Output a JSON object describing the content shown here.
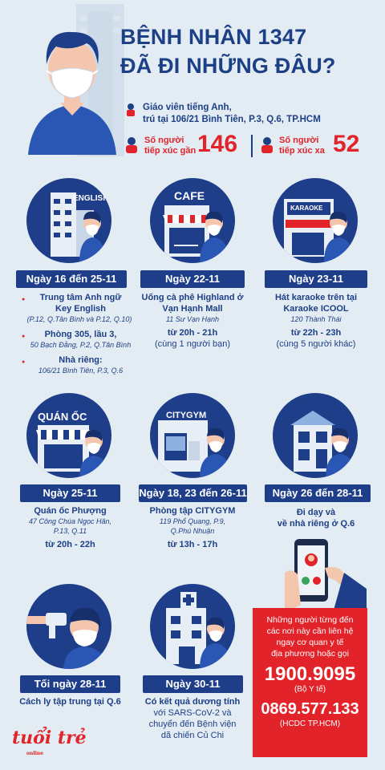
{
  "header": {
    "title_line1": "BỆNH NHÂN 1347",
    "title_line2": "ĐÃ ĐI NHỮNG ĐÂU?",
    "info_line1": "Giáo viên tiếng Anh,",
    "info_line2": "trú tại 106/21 Bình Tiên, P.3, Q.6, TP.HCM",
    "stat1_label_line1": "Số người",
    "stat1_label_line2": "tiếp xúc gần",
    "stat1_value": "146",
    "stat2_label_line1": "Số người",
    "stat2_label_line2": "tiếp xúc xa",
    "stat2_value": "52"
  },
  "places": {
    "english": {
      "sign": "ENGLISH",
      "date": "Ngày 16 đến 25-11",
      "item1_line1": "Trung tâm Anh ngữ",
      "item1_line2": "Key English",
      "item1_addr": "(P.12, Q.Tân Bình và P.12, Q.10)",
      "item2": "Phòng 305, lầu 3,",
      "item2_addr": "50 Bạch Đằng, P.2, Q.Tân Bình",
      "item3": "Nhà riêng:",
      "item3_addr": "106/21 Bình Tiên, P.3, Q.6"
    },
    "cafe": {
      "sign": "CAFE",
      "date": "Ngày 22-11",
      "line1": "Uống cà phê Highland ở",
      "line2": "Vạn Hạnh Mall",
      "addr": "11 Sư Vạn Hạnh",
      "time": "từ 20h - 21h",
      "note": "(cùng 1 người bạn)"
    },
    "karaoke": {
      "sign": "KARAOKE",
      "date": "Ngày 23-11",
      "line1": "Hát karaoke trên tại",
      "line2": "Karaoke ICOOL",
      "addr": "120 Thành Thái",
      "time": "từ 22h - 23h",
      "note": "(cùng 5 người khác)"
    },
    "quanoc": {
      "sign": "QUÁN ỐC",
      "date": "Ngày 25-11",
      "line1": "Quán ốc Phượng",
      "addr1": "47 Công Chúa Ngọc Hân,",
      "addr2": "P.13, Q.11",
      "time": "từ 20h - 22h"
    },
    "gym": {
      "sign": "CITYGYM",
      "date": "Ngày 18, 23 đến 26-11",
      "line1": "Phòng tập CITYGYM",
      "addr1": "119 Phổ Quang, P.9,",
      "addr2": "Q.Phú Nhuận",
      "time": "từ 13h - 17h"
    },
    "home": {
      "date": "Ngày 26 đến 28-11",
      "line1": "Đi dạy và",
      "line2": "về nhà riêng ở Q.6"
    },
    "isolation": {
      "date": "Tối ngày 28-11",
      "line1": "Cách ly tập trung tại Q.6"
    },
    "hospital": {
      "date": "Ngày 30-11",
      "line1": "Có kết quả dương tính",
      "line2": "với SARS-CoV-2 và",
      "line3": "chuyển đến Bệnh viện",
      "line4": "dã chiến Củ Chi"
    }
  },
  "hotline": {
    "msg1": "Những người từng đến",
    "msg2": "các nơi này cần liên hệ",
    "msg3": "ngay cơ quan y tế",
    "msg4": "địa phương hoặc gọi",
    "number1": "1900.9095",
    "label1": "(Bộ Y tế)",
    "number2": "0869.577.133",
    "label2": "(HCDC TP.HCM)"
  },
  "logo": {
    "text": "tuổi trẻ",
    "sub": "online"
  },
  "colors": {
    "navy": "#1f3e8a",
    "red": "#e2232a",
    "background": "#e3ecf3"
  }
}
